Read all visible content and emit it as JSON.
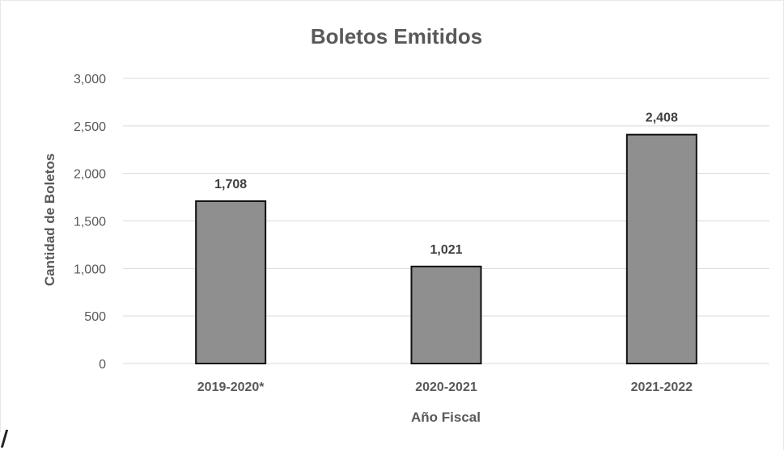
{
  "chart_data": {
    "type": "bar",
    "title": "Boletos Emitidos",
    "xlabel": "Año Fiscal",
    "ylabel": "Cantidad de Boletos",
    "categories": [
      "2019-2020*",
      "2020-2021",
      "2021-2022"
    ],
    "values": [
      1708,
      1021,
      2408
    ],
    "data_labels": [
      "1,708",
      "1,021",
      "2,408"
    ],
    "ylim": [
      0,
      3000
    ],
    "yticks": [
      0,
      500,
      1000,
      1500,
      2000,
      2500,
      3000
    ],
    "ytick_labels": [
      "0",
      "500",
      "1,000",
      "1,500",
      "2,000",
      "2,500",
      "3,000"
    ],
    "grid": true,
    "legend": "none",
    "bar_color": "#8f8f8f",
    "bar_edge_color": "#111111",
    "text_color": "#595959",
    "title_color": "#595959",
    "grid_color": "#d9d9d9"
  }
}
